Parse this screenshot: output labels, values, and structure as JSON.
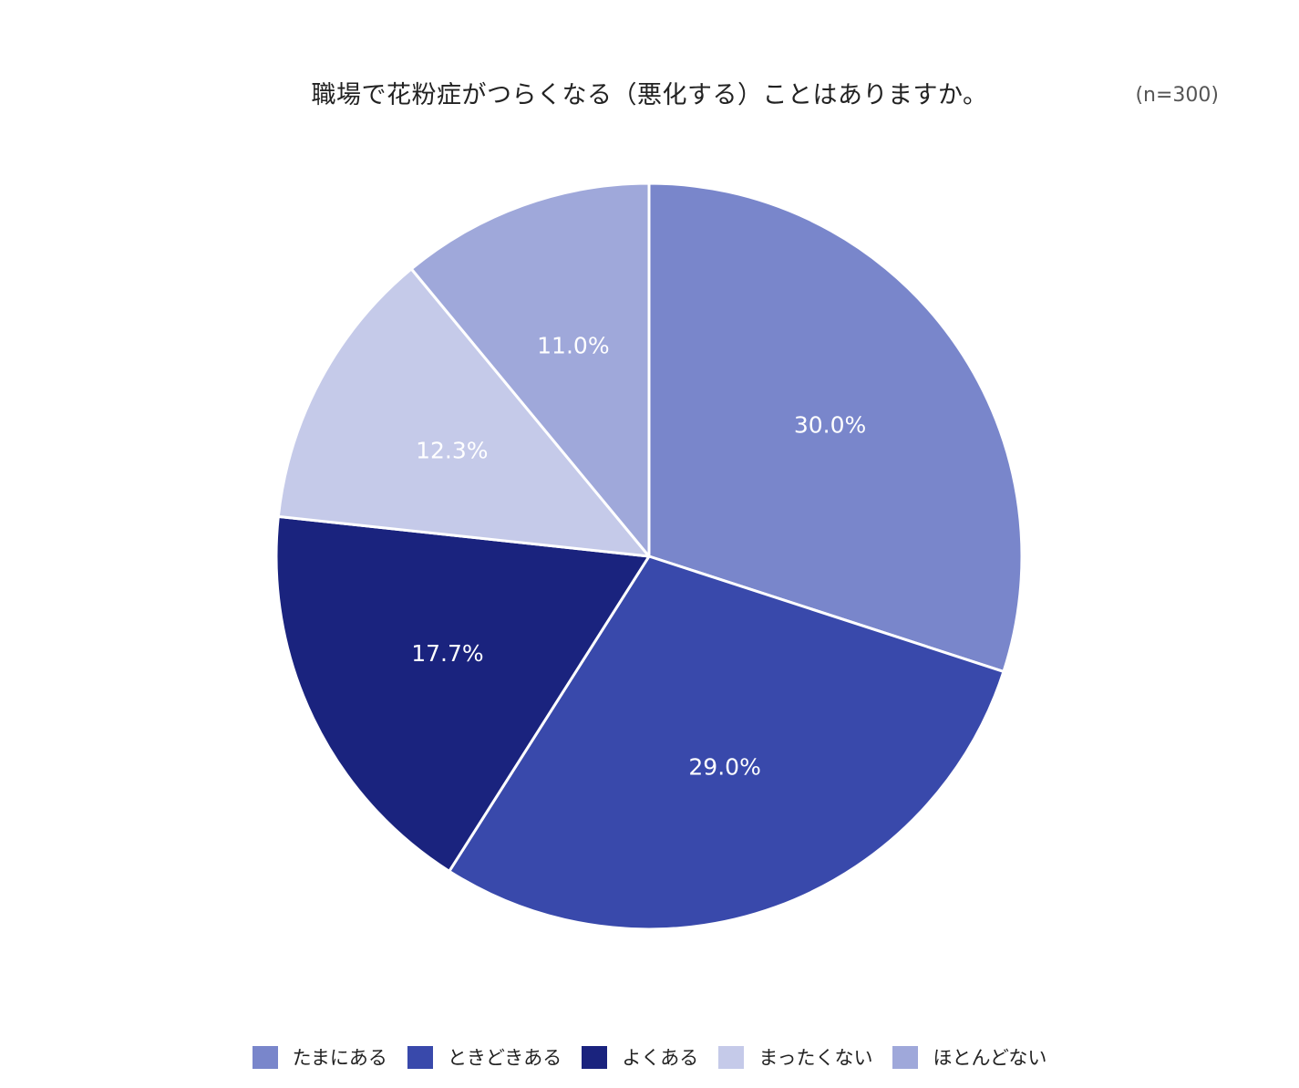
{
  "chart_data": {
    "type": "pie",
    "title": "職場で花粉症がつらくなる（悪化する）ことはありますか。",
    "note": "(n=300)",
    "legend_position": "bottom",
    "slices": [
      {
        "label": "たまにある",
        "value": 30.0,
        "display": "30.0%",
        "color": "#7986cb"
      },
      {
        "label": "ときどきある",
        "value": 29.0,
        "display": "29.0%",
        "color": "#3949ab"
      },
      {
        "label": "よくある",
        "value": 17.7,
        "display": "17.7%",
        "color": "#1a237e"
      },
      {
        "label": "まったくない",
        "value": 12.3,
        "display": "12.3%",
        "color": "#c5cae9"
      },
      {
        "label": "ほとんどない",
        "value": 11.0,
        "display": "11.0%",
        "color": "#9fa8da"
      }
    ]
  }
}
